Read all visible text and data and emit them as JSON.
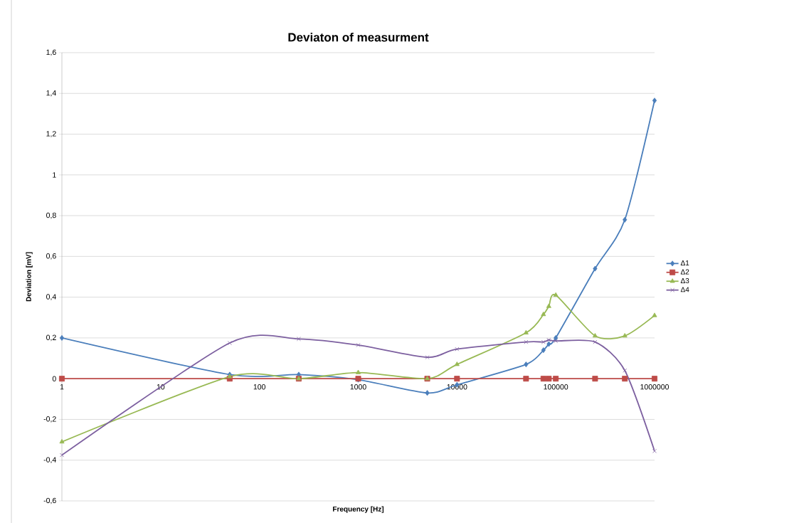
{
  "chart_data": {
    "type": "line",
    "title": "Deviaton of measurment",
    "xlabel": "Frequency [Hz]",
    "ylabel": "Deviation [mV]",
    "log": "x",
    "grid": "y",
    "legend": "right",
    "line_style": "solid",
    "xlim": [
      1,
      1000000
    ],
    "xticks": [
      1,
      10,
      100,
      1000,
      10000,
      100000,
      1000000
    ],
    "ylim": [
      -0.6,
      1.6
    ],
    "yticks": [
      {
        "value": -0.6,
        "label": "-0,6"
      },
      {
        "value": -0.4,
        "label": "-0,4"
      },
      {
        "value": -0.2,
        "label": "-0,2"
      },
      0,
      {
        "value": 0.2,
        "label": "0,2"
      },
      {
        "value": 0.4,
        "label": "0,4"
      },
      {
        "value": 0.6,
        "label": "0,6"
      },
      {
        "value": 0.8,
        "label": "0,8"
      },
      1,
      {
        "value": 1.2,
        "label": "1,2"
      },
      {
        "value": 1.4,
        "label": "1,4"
      },
      {
        "value": 1.6,
        "label": "1,6"
      }
    ],
    "x": [
      1,
      50,
      250,
      1000,
      5000,
      10000,
      50000,
      75000,
      85000,
      100000,
      250000,
      500000,
      1000000
    ],
    "series": [
      {
        "name": "Δ1",
        "color": "#4a7ebb",
        "marker": "diamond",
        "values": [
          0.2,
          0.02,
          0.02,
          -0.005,
          -0.07,
          -0.03,
          0.07,
          0.14,
          0.17,
          0.2,
          0.54,
          0.78,
          1.365
        ]
      },
      {
        "name": "Δ2",
        "color": "#be4b48",
        "marker": "square",
        "values": [
          0,
          0,
          0,
          0,
          0,
          0,
          0,
          0,
          0,
          0,
          0,
          0,
          0
        ]
      },
      {
        "name": "Δ3",
        "color": "#98b954",
        "marker": "triangle",
        "values": [
          -0.31,
          0.01,
          0,
          0.03,
          0,
          0.07,
          0.225,
          0.315,
          0.355,
          0.41,
          0.21,
          0.21,
          0.31
        ]
      },
      {
        "name": "Δ4",
        "color": "#7d60a0",
        "marker": "cross",
        "values": [
          -0.375,
          0.175,
          0.195,
          0.165,
          0.105,
          0.145,
          0.18,
          0.18,
          0.19,
          0.185,
          0.18,
          0.04,
          -0.355
        ]
      }
    ]
  }
}
